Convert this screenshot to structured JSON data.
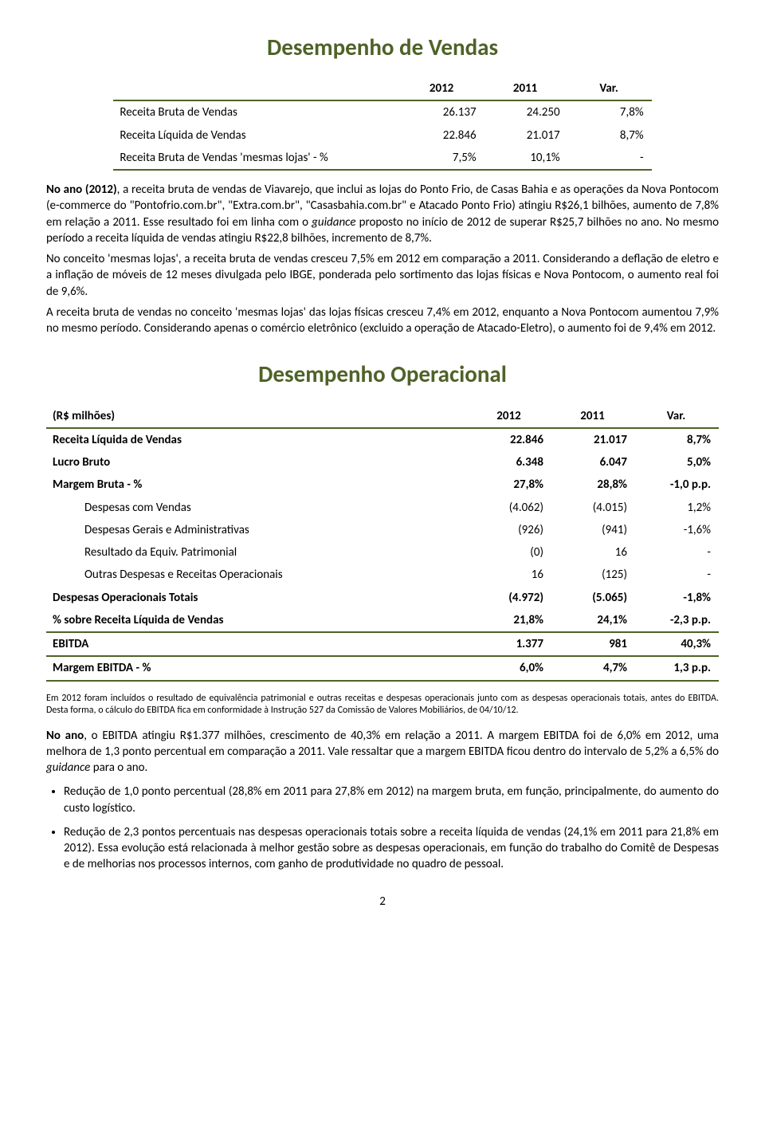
{
  "section1": {
    "title": "Desempenho de Vendas",
    "table": {
      "headers": [
        "",
        "2012",
        "2011",
        "Var."
      ],
      "rows": [
        {
          "label": "Receita Bruta de Vendas",
          "c1": "26.137",
          "c2": "24.250",
          "c3": "7,8%"
        },
        {
          "label": "Receita Líquida de Vendas",
          "c1": "22.846",
          "c2": "21.017",
          "c3": "8,7%"
        },
        {
          "label": "Receita Bruta de Vendas 'mesmas lojas' - %",
          "c1": "7,5%",
          "c2": "10,1%",
          "c3": "-"
        }
      ]
    },
    "paragraphs": [
      "No ano (2012), a receita bruta de vendas de Viavarejo, que inclui as lojas do Ponto Frio, de Casas Bahia e as operações da Nova Pontocom (e-commerce do \"Pontofrio.com.br\", \"Extra.com.br\", \"Casasbahia.com.br\" e Atacado Ponto Frio) atingiu R$26,1 bilhões, aumento de 7,8% em relação a 2011. Esse resultado foi em linha com o guidance proposto no início de 2012 de superar R$25,7 bilhões no ano. No mesmo período a receita líquida de vendas atingiu R$22,8 bilhões, incremento de 8,7%.",
      "No conceito 'mesmas lojas', a receita bruta de vendas cresceu 7,5% em 2012 em comparação a 2011. Considerando a deflação de eletro e a inflação de móveis de 12 meses divulgada pelo IBGE, ponderada pelo sortimento das lojas físicas e Nova Pontocom, o aumento real foi de 9,6%.",
      "A receita bruta de vendas no conceito 'mesmas lojas' das lojas físicas cresceu 7,4% em 2012, enquanto a Nova Pontocom aumentou 7,9% no mesmo período. Considerando apenas o comércio eletrônico (excluido a operação de Atacado-Eletro), o aumento foi de 9,4% em 2012."
    ]
  },
  "section2": {
    "title": "Desempenho Operacional",
    "table": {
      "header_label": "(R$ milhões)",
      "headers": [
        "2012",
        "2011",
        "Var."
      ],
      "rows": [
        {
          "label": "Receita Líquida de Vendas",
          "c1": "22.846",
          "c2": "21.017",
          "c3": "8,7%",
          "bold": true
        },
        {
          "label": "Lucro Bruto",
          "c1": "6.348",
          "c2": "6.047",
          "c3": "5,0%",
          "bold": true
        },
        {
          "label": "Margem Bruta - %",
          "c1": "27,8%",
          "c2": "28,8%",
          "c3": "-1,0 p.p.",
          "bold": true
        },
        {
          "label": "Despesas com Vendas",
          "c1": "(4.062)",
          "c2": "(4.015)",
          "c3": "1,2%",
          "indent": true
        },
        {
          "label": "Despesas Gerais e Administrativas",
          "c1": "(926)",
          "c2": "(941)",
          "c3": "-1,6%",
          "indent": true
        },
        {
          "label": "Resultado da Equiv. Patrimonial",
          "c1": "(0)",
          "c2": "16",
          "c3": "-",
          "indent": true
        },
        {
          "label": "Outras Despesas e Receitas Operacionais",
          "c1": "16",
          "c2": "(125)",
          "c3": "-",
          "indent": true
        },
        {
          "label": "Despesas Operacionais Totais",
          "c1": "(4.972)",
          "c2": "(5.065)",
          "c3": "-1,8%",
          "bold": true
        },
        {
          "label": "% sobre Receita Líquida de Vendas",
          "c1": "21,8%",
          "c2": "24,1%",
          "c3": "-2,3 p.p.",
          "bold": true,
          "border_bottom": true
        },
        {
          "label": "EBITDA",
          "c1": "1.377",
          "c2": "981",
          "c3": "40,3%",
          "bold": true,
          "border_bottom": true
        },
        {
          "label": "Margem EBITDA - %",
          "c1": "6,0%",
          "c2": "4,7%",
          "c3": "1,3 p.p.",
          "bold": true,
          "border_bottom": true
        }
      ]
    },
    "footnote": "Em 2012 foram incluídos o resultado de equivalência patrimonial e outras receitas e despesas operacionais junto com as despesas operacionais totais, antes do EBITDA. Desta forma, o cálculo do EBITDA fica em conformidade à Instrução 527 da Comissão de Valores Mobiliários, de 04/10/12.",
    "paragraph": "No ano, o EBITDA atingiu R$1.377 milhões, crescimento de 40,3% em relação a 2011. A margem EBITDA foi de 6,0% em 2012, uma melhora de 1,3 ponto percentual em comparação a 2011. Vale ressaltar que a margem EBITDA ficou dentro do intervalo de 5,2% a 6,5% do guidance para o ano.",
    "bullets": [
      "Redução de 1,0 ponto percentual (28,8% em 2011 para 27,8% em 2012) na margem bruta, em função, principalmente, do aumento do custo logístico.",
      "Redução de 2,3 pontos percentuais nas despesas operacionais totais sobre a receita líquida de vendas (24,1% em 2011 para 21,8% em 2012). Essa evolução está relacionada à melhor gestão sobre as despesas operacionais, em função do trabalho do Comitê de Despesas e de melhorias nos processos internos, com ganho de produtividade no quadro de pessoal."
    ]
  },
  "page_number": "2"
}
